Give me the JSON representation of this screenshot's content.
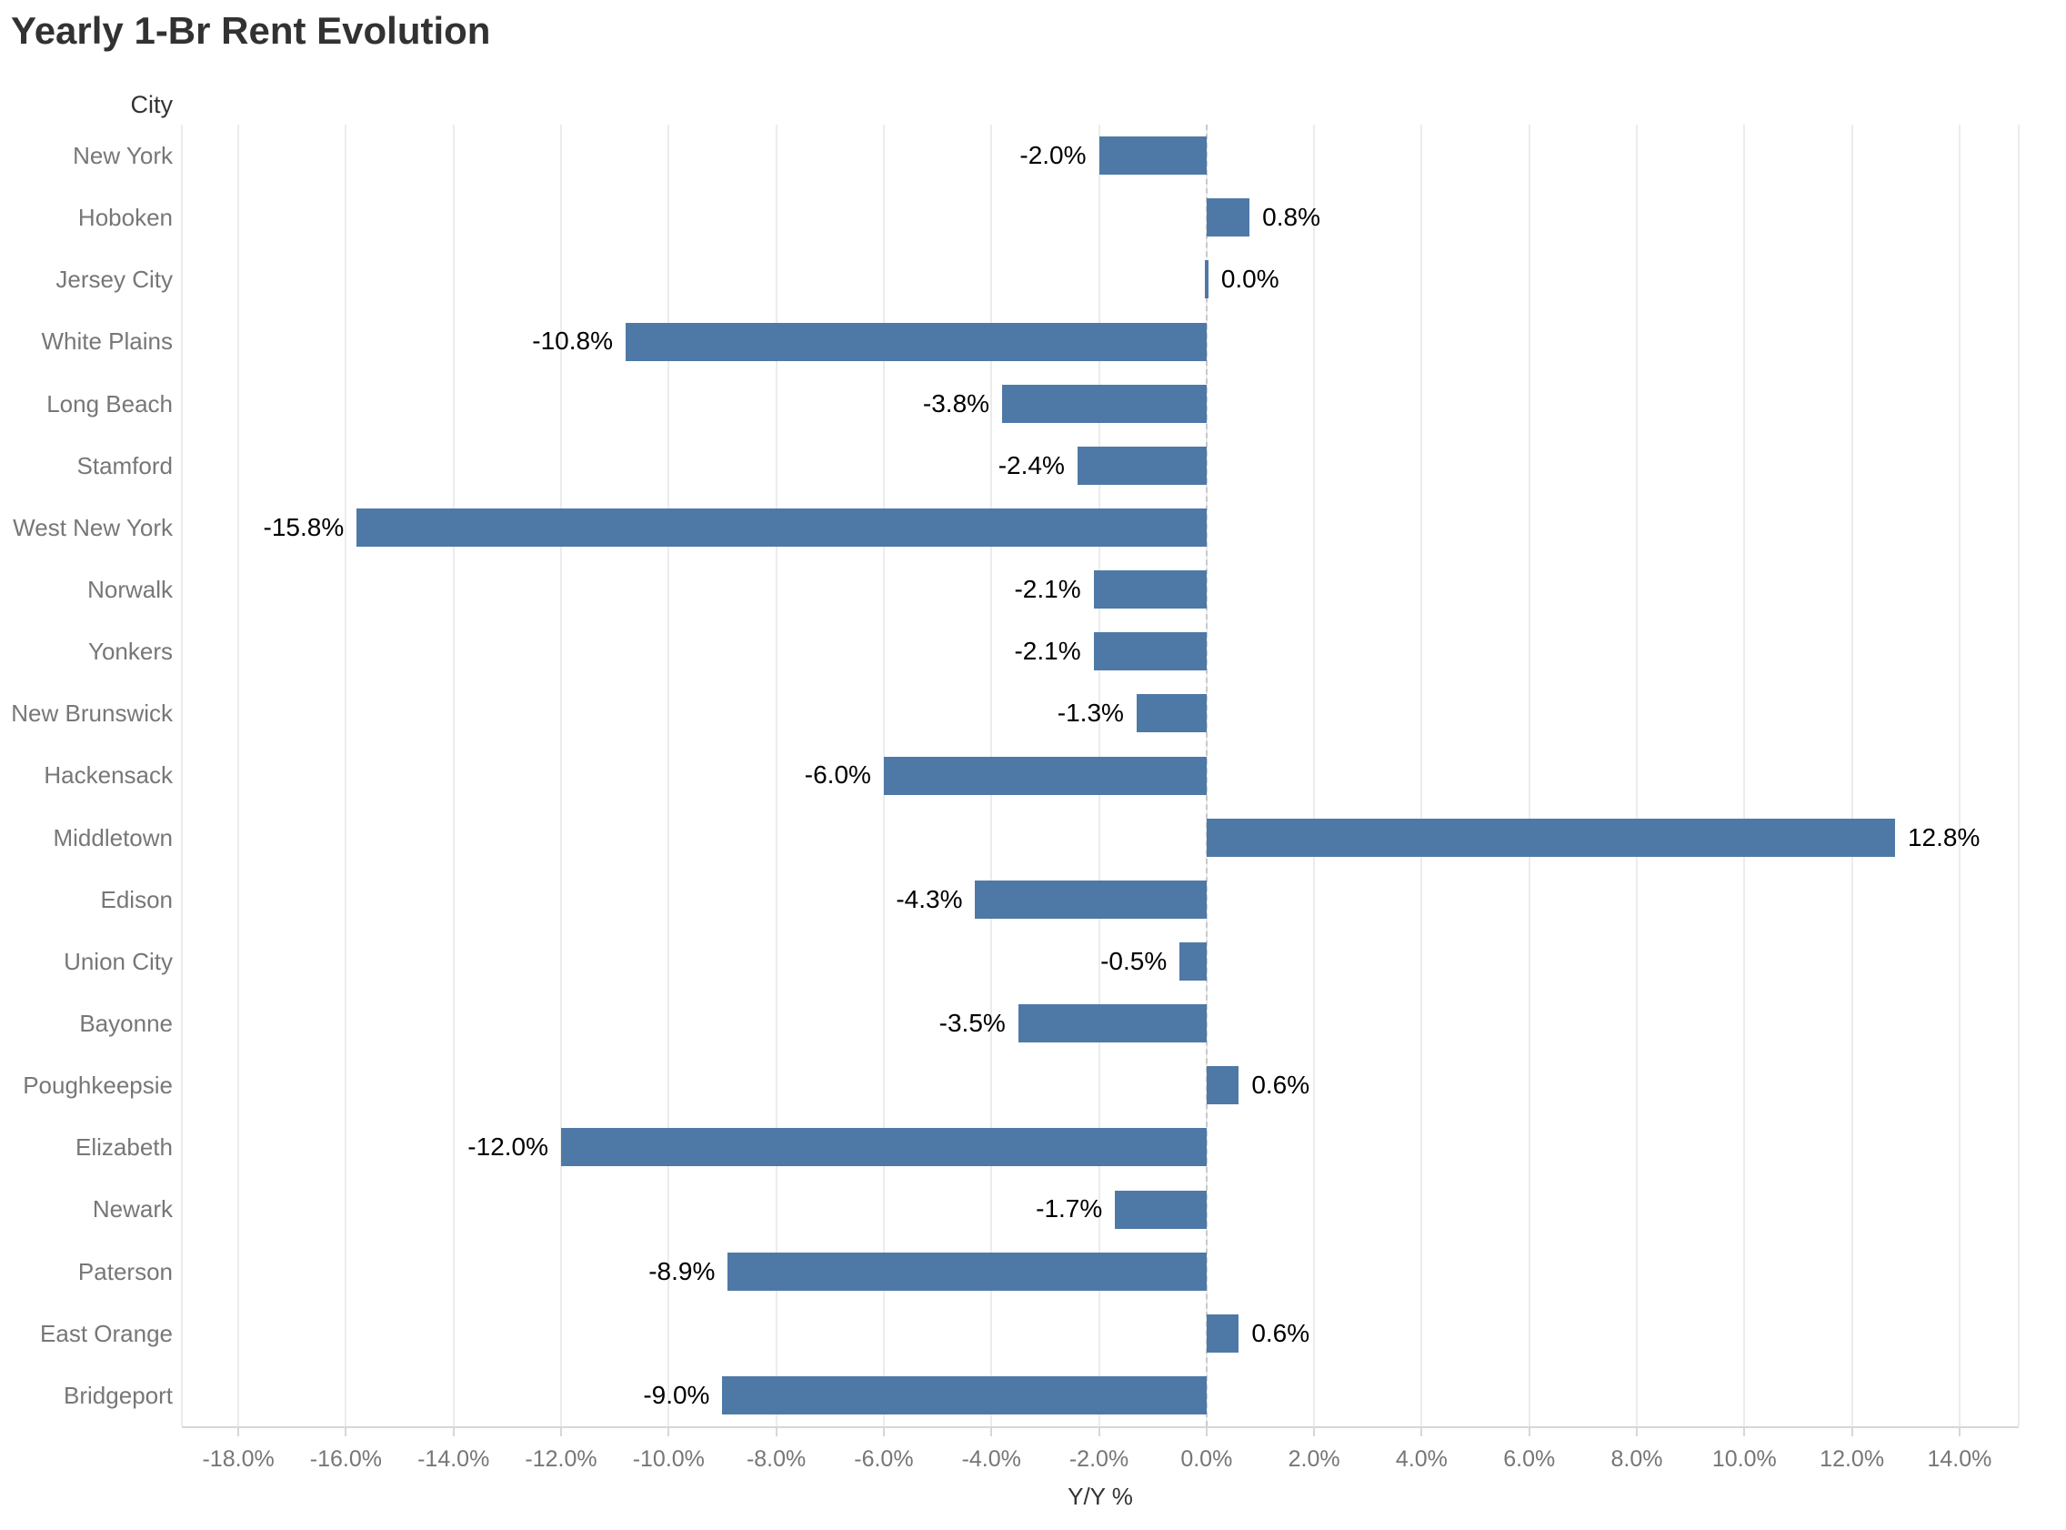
{
  "title": "Yearly 1-Br Rent Evolution",
  "chart_data": {
    "type": "bar",
    "orientation": "horizontal",
    "title": "Yearly 1-Br Rent Evolution",
    "column_header": "City",
    "xlabel": "Y/Y %",
    "ylabel": "City",
    "categories": [
      "New York",
      "Hoboken",
      "Jersey City",
      "White Plains",
      "Long Beach",
      "Stamford",
      "West New York",
      "Norwalk",
      "Yonkers",
      "New Brunswick",
      "Hackensack",
      "Middletown",
      "Edison",
      "Union City",
      "Bayonne",
      "Poughkeepsie",
      "Elizabeth",
      "Newark",
      "Paterson",
      "East Orange",
      "Bridgeport"
    ],
    "values": [
      -2.0,
      0.8,
      0.0,
      -10.8,
      -3.8,
      -2.4,
      -15.8,
      -2.1,
      -2.1,
      -1.3,
      -6.0,
      12.8,
      -4.3,
      -0.5,
      -3.5,
      0.6,
      -12.0,
      -1.7,
      -8.9,
      0.6,
      -9.0
    ],
    "labels": [
      "-2.0%",
      "0.8%",
      "0.0%",
      "-10.8%",
      "-3.8%",
      "-2.4%",
      "-15.8%",
      "-2.1%",
      "-2.1%",
      "-1.3%",
      "-6.0%",
      "12.8%",
      "-4.3%",
      "-0.5%",
      "-3.5%",
      "0.6%",
      "-12.0%",
      "-1.7%",
      "-8.9%",
      "0.6%",
      "-9.0%"
    ],
    "x_ticks": [
      -18,
      -16,
      -14,
      -12,
      -10,
      -8,
      -6,
      -4,
      -2,
      0,
      2,
      4,
      6,
      8,
      10,
      12,
      14
    ],
    "x_tick_labels": [
      "-18.0%",
      "-16.0%",
      "-14.0%",
      "-12.0%",
      "-10.0%",
      "-8.0%",
      "-6.0%",
      "-4.0%",
      "-2.0%",
      "0.0%",
      "2.0%",
      "4.0%",
      "6.0%",
      "8.0%",
      "10.0%",
      "12.0%",
      "14.0%"
    ],
    "xlim": [
      -19.05,
      15.1
    ],
    "grid": true,
    "zero_line": "dashed",
    "legend": "none",
    "colors": {
      "bar": "#4e79a7",
      "gridline": "#ececec",
      "zero_line": "#c9c9c9",
      "axis_line": "#d7d7d7",
      "category_label": "#777777",
      "tick_label": "#767676",
      "value_label": "#000000",
      "title": "#323232",
      "background": "#ffffff"
    }
  }
}
